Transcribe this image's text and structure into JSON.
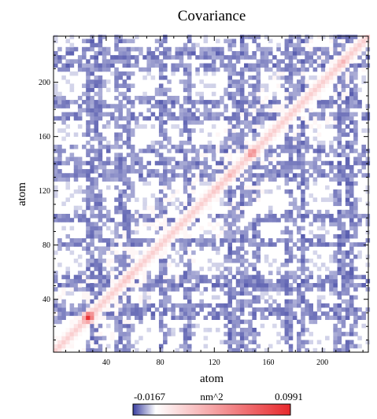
{
  "chart_data": {
    "type": "heatmap",
    "title": "Covariance",
    "xlabel": "atom",
    "ylabel": "atom",
    "xlim": [
      1,
      234
    ],
    "ylim": [
      1,
      234
    ],
    "x_ticks": [
      40,
      80,
      120,
      160,
      200
    ],
    "y_ticks": [
      40,
      80,
      120,
      160,
      200
    ],
    "minor_tick_step": 10,
    "colorbar": {
      "min_label": "-0.0167",
      "max_label": "0.0991",
      "unit": "nm^2",
      "min": -0.0167,
      "max": 0.0991,
      "colors": [
        "#3a3fa0",
        "#ffffff",
        "#e8282c"
      ]
    },
    "pattern": {
      "diagonal_value": 0.022,
      "diagonal_hotspots": [
        {
          "x": 27,
          "y": 27,
          "value": 0.0991
        },
        {
          "x": 148,
          "y": 148,
          "value": 0.06
        },
        {
          "x": 132,
          "y": 132,
          "value": 0.035
        },
        {
          "x": 122,
          "y": 122,
          "value": 0.03
        },
        {
          "x": 215,
          "y": 215,
          "value": 0.035
        },
        {
          "x": 56,
          "y": 56,
          "value": 0.03
        },
        {
          "x": 100,
          "y": 100,
          "value": 0.022
        }
      ],
      "negative_bands": [
        28,
        30,
        34,
        50,
        55,
        82,
        100,
        132,
        140,
        150,
        175,
        185,
        212,
        218,
        222
      ],
      "min_value": -0.0167
    }
  }
}
